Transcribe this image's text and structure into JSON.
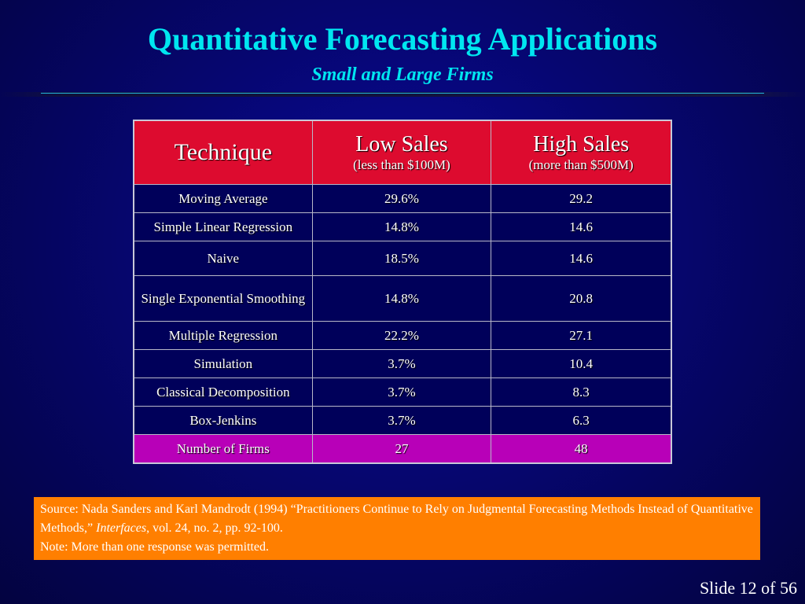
{
  "slide": {
    "title": "Quantitative Forecasting Applications",
    "subtitle": "Small and Large Firms"
  },
  "table": {
    "headers": [
      {
        "main": "Technique",
        "sub": ""
      },
      {
        "main": "Low Sales",
        "sub": "(less than $100M)"
      },
      {
        "main": "High Sales",
        "sub": "(more than $500M)"
      }
    ],
    "rows": [
      [
        "Moving Average",
        "29.6%",
        "29.2"
      ],
      [
        "Simple Linear Regression",
        "14.8%",
        "14.6"
      ],
      [
        "Naive",
        "18.5%",
        "14.6"
      ],
      [
        "Single Exponential Smoothing",
        "14.8%",
        "20.8"
      ],
      [
        "Multiple Regression",
        "22.2%",
        "27.1"
      ],
      [
        "Simulation",
        "3.7%",
        "10.4"
      ],
      [
        "Classical Decomposition",
        "3.7%",
        "8.3"
      ],
      [
        "Box-Jenkins",
        "3.7%",
        "6.3"
      ]
    ],
    "total_row": [
      "Number of Firms",
      "27",
      "48"
    ]
  },
  "source": {
    "line1_prefix": "Source: Nada Sanders and Karl Mandrodt (1994) “Practitioners Continue to Rely on Judgmental Forecasting Methods Instead of Quantitative Methods,” ",
    "journal": "Interfaces",
    "line1_suffix": ", vol. 24, no. 2, pp. 92-100.",
    "note": "Note: More than one response was permitted."
  },
  "footer": {
    "slide_number": "Slide 12 of 56"
  },
  "colors": {
    "background": "#06067a",
    "title": "#00e6f0",
    "header_fill": "#dd0b2f",
    "total_fill": "#b800b8",
    "note_fill": "#ff7f00"
  }
}
